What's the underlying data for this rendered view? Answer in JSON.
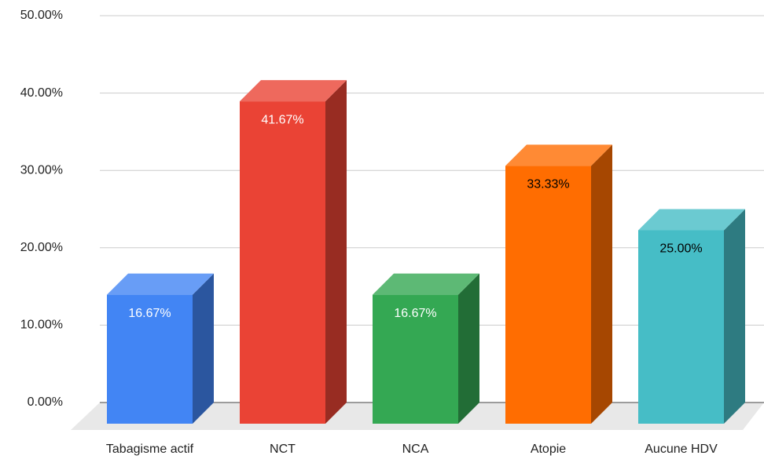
{
  "chart_data": {
    "type": "bar3d",
    "categories": [
      "Tabagisme actif",
      "NCT",
      "NCA",
      "Atopie",
      "Aucune HDV"
    ],
    "values": [
      16.67,
      41.67,
      16.67,
      33.33,
      25
    ],
    "value_labels": [
      "16.67%",
      "41.67%",
      "16.67%",
      "33.33%",
      "25.00%"
    ],
    "colors": [
      "#4285f4",
      "#ea4335",
      "#34a853",
      "#ff6d01",
      "#46bdc6"
    ],
    "label_colors": [
      "#ffffff",
      "#ffffff",
      "#ffffff",
      "#000000",
      "#000000"
    ],
    "ylim": [
      0,
      50
    ],
    "yticks": [
      {
        "value": 0,
        "label": "0.00%"
      },
      {
        "value": 10,
        "label": "10.00%"
      },
      {
        "value": 20,
        "label": "20.00%"
      },
      {
        "value": 30,
        "label": "30.00%"
      },
      {
        "value": 40,
        "label": "40.00%"
      },
      {
        "value": 50,
        "label": "50.00%"
      }
    ],
    "grid": true
  }
}
